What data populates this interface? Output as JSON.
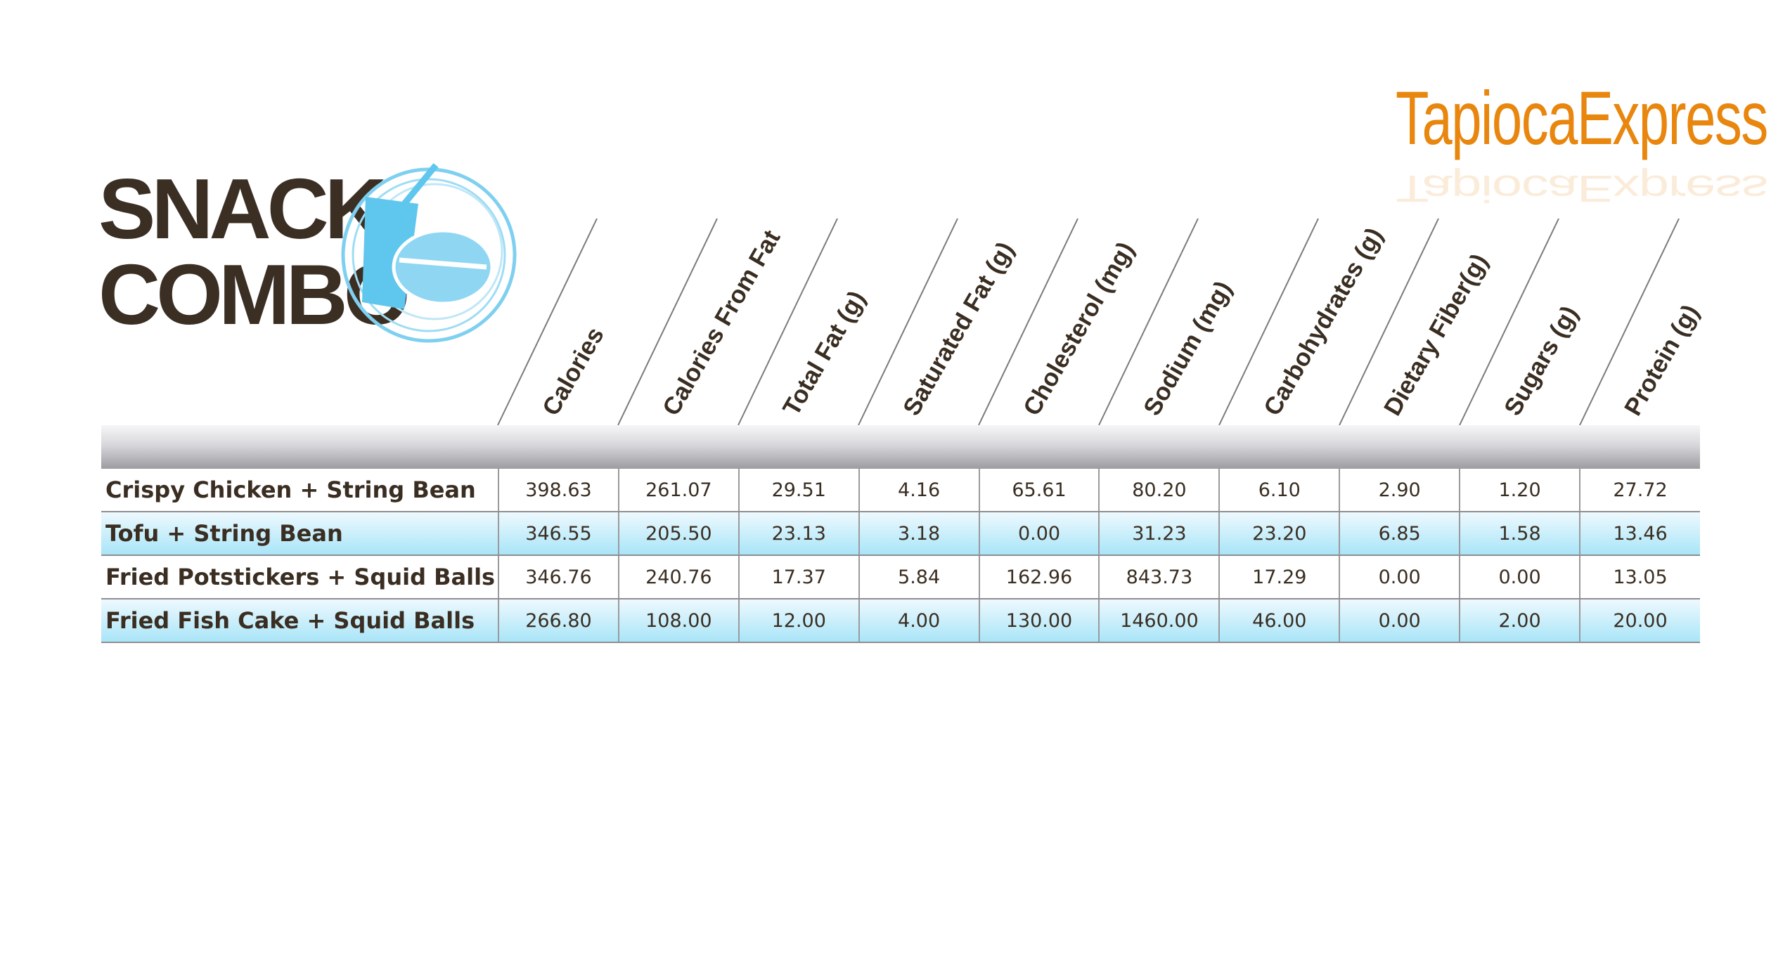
{
  "title": {
    "line1": "SNACK",
    "line2": "COMBO"
  },
  "brand": {
    "name": "TapiocaExpress",
    "color": "#e8860e"
  },
  "colors": {
    "accent_blue": "#5fc6ee",
    "row_blue": "#a9e5f8",
    "text": "#3a2e22"
  },
  "columns": [
    "Calories",
    "Calories From Fat",
    "Total Fat (g)",
    "Saturated Fat (g)",
    "Cholesterol (mg)",
    "Sodium (mg)",
    "Carbohydrates (g)",
    "Dietary Fiber(g)",
    "Sugars (g)",
    "Protein (g)"
  ],
  "rows": [
    {
      "name": "Crispy Chicken + String Bean",
      "values": [
        "398.63",
        "261.07",
        "29.51",
        "4.16",
        "65.61",
        "80.20",
        "6.10",
        "2.90",
        "1.20",
        "27.72"
      ]
    },
    {
      "name": "Tofu + String Bean",
      "values": [
        "346.55",
        "205.50",
        "23.13",
        "3.18",
        "0.00",
        "31.23",
        "23.20",
        "6.85",
        "1.58",
        "13.46"
      ]
    },
    {
      "name": "Fried Potstickers + Squid Balls",
      "values": [
        "346.76",
        "240.76",
        "17.37",
        "5.84",
        "162.96",
        "843.73",
        "17.29",
        "0.00",
        "0.00",
        "13.05"
      ]
    },
    {
      "name": "Fried Fish Cake + Squid Balls",
      "values": [
        "266.80",
        "108.00",
        "12.00",
        "4.00",
        "130.00",
        "1460.00",
        "46.00",
        "0.00",
        "2.00",
        "20.00"
      ]
    }
  ]
}
